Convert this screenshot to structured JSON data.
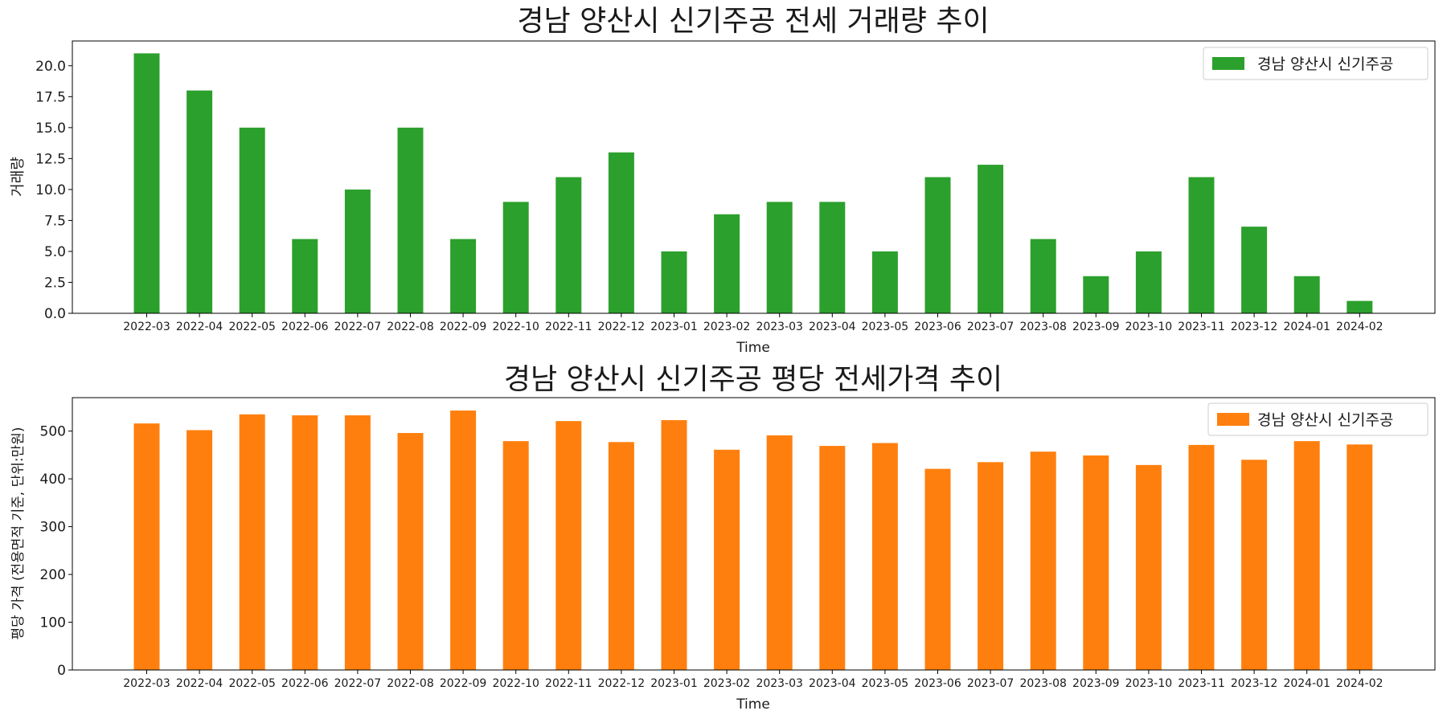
{
  "chart_data": [
    {
      "type": "bar",
      "title": "경남 양산시 신기주공 전세 거래량 추이",
      "xlabel": "Time",
      "ylabel": "거래량",
      "ylim": [
        0,
        22
      ],
      "yticks": [
        "0.0",
        "2.5",
        "5.0",
        "7.5",
        "10.0",
        "12.5",
        "15.0",
        "17.5",
        "20.0"
      ],
      "ytick_values": [
        0,
        2.5,
        5,
        7.5,
        10,
        12.5,
        15,
        17.5,
        20
      ],
      "grid": false,
      "legend_position": "top-right",
      "color": "#2ca02c",
      "categories": [
        "2022-03",
        "2022-04",
        "2022-05",
        "2022-06",
        "2022-07",
        "2022-08",
        "2022-09",
        "2022-10",
        "2022-11",
        "2022-12",
        "2023-01",
        "2023-02",
        "2023-03",
        "2023-04",
        "2023-05",
        "2023-06",
        "2023-07",
        "2023-08",
        "2023-09",
        "2023-10",
        "2023-11",
        "2023-12",
        "2024-01",
        "2024-02"
      ],
      "series": [
        {
          "name": "경남 양산시 신기주공",
          "values": [
            21,
            18,
            15,
            6,
            10,
            15,
            6,
            9,
            11,
            13,
            5,
            8,
            9,
            9,
            5,
            11,
            12,
            6,
            3,
            5,
            11,
            7,
            3,
            1
          ]
        }
      ]
    },
    {
      "type": "bar",
      "title": "경남 양산시 신기주공 평당 전세가격 추이",
      "xlabel": "Time",
      "ylabel": "평당 가격 (전용면적 기준, 단위:만원)",
      "ylim": [
        0,
        570
      ],
      "yticks": [
        "0",
        "100",
        "200",
        "300",
        "400",
        "500"
      ],
      "ytick_values": [
        0,
        100,
        200,
        300,
        400,
        500
      ],
      "grid": false,
      "legend_position": "top-right",
      "color": "#ff7f0e",
      "categories": [
        "2022-03",
        "2022-04",
        "2022-05",
        "2022-06",
        "2022-07",
        "2022-08",
        "2022-09",
        "2022-10",
        "2022-11",
        "2022-12",
        "2023-01",
        "2023-02",
        "2023-03",
        "2023-04",
        "2023-05",
        "2023-06",
        "2023-07",
        "2023-08",
        "2023-09",
        "2023-10",
        "2023-11",
        "2023-12",
        "2024-01",
        "2024-02"
      ],
      "series": [
        {
          "name": "경남 양산시 신기주공",
          "values": [
            516,
            502,
            535,
            533,
            533,
            496,
            543,
            479,
            521,
            477,
            523,
            461,
            491,
            469,
            475,
            421,
            435,
            457,
            449,
            429,
            471,
            440,
            479,
            472
          ]
        }
      ]
    }
  ]
}
